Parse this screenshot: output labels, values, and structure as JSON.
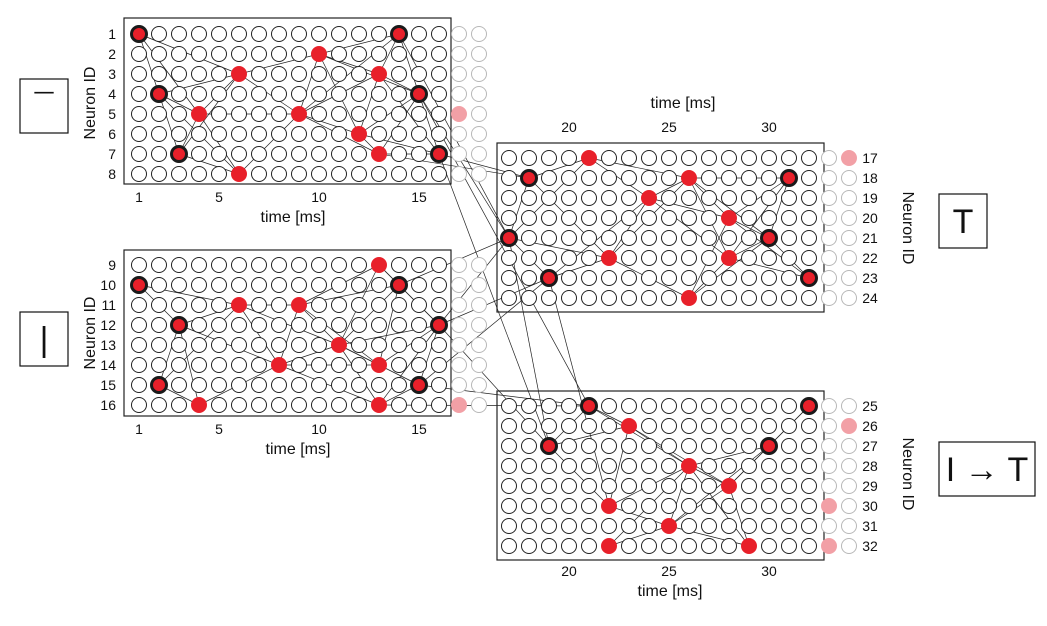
{
  "panels": [
    {
      "id": "top-left",
      "symbol": "¯",
      "axis_title": "time [ms]",
      "side_title": "Neuron ID",
      "neuron_ids": [
        1,
        2,
        3,
        4,
        5,
        6,
        7,
        8
      ],
      "time_ticks": [
        1,
        5,
        10,
        15
      ],
      "spikes": [
        {
          "row": 1,
          "col": 1,
          "bold": true
        },
        {
          "row": 1,
          "col": 14,
          "bold": true
        },
        {
          "row": 2,
          "col": 10,
          "bold": false
        },
        {
          "row": 3,
          "col": 6,
          "bold": false
        },
        {
          "row": 3,
          "col": 13,
          "bold": false
        },
        {
          "row": 4,
          "col": 2,
          "bold": true
        },
        {
          "row": 4,
          "col": 15,
          "bold": true
        },
        {
          "row": 5,
          "col": 4,
          "bold": false
        },
        {
          "row": 5,
          "col": 9,
          "bold": false
        },
        {
          "row": 6,
          "col": 12,
          "bold": false
        },
        {
          "row": 7,
          "col": 3,
          "bold": true
        },
        {
          "row": 7,
          "col": 13,
          "bold": false
        },
        {
          "row": 7,
          "col": 16,
          "bold": true
        },
        {
          "row": 8,
          "col": 6,
          "bold": false
        }
      ],
      "faded_spikes": [
        {
          "row": 5,
          "col": 17
        }
      ]
    },
    {
      "id": "bottom-left",
      "symbol": "|",
      "axis_title": "time [ms]",
      "side_title": "Neuron ID",
      "neuron_ids": [
        9,
        10,
        11,
        12,
        13,
        14,
        15,
        16
      ],
      "time_ticks": [
        1,
        5,
        10,
        15
      ],
      "spikes": [
        {
          "row": 1,
          "col": 13,
          "bold": false
        },
        {
          "row": 2,
          "col": 1,
          "bold": true
        },
        {
          "row": 2,
          "col": 14,
          "bold": true
        },
        {
          "row": 3,
          "col": 6,
          "bold": false
        },
        {
          "row": 3,
          "col": 9,
          "bold": false
        },
        {
          "row": 4,
          "col": 3,
          "bold": true
        },
        {
          "row": 4,
          "col": 16,
          "bold": true
        },
        {
          "row": 5,
          "col": 11,
          "bold": false
        },
        {
          "row": 6,
          "col": 8,
          "bold": false
        },
        {
          "row": 6,
          "col": 13,
          "bold": false
        },
        {
          "row": 7,
          "col": 2,
          "bold": true
        },
        {
          "row": 7,
          "col": 15,
          "bold": true
        },
        {
          "row": 8,
          "col": 4,
          "bold": false
        },
        {
          "row": 8,
          "col": 13,
          "bold": false
        }
      ],
      "faded_spikes": [
        {
          "row": 8,
          "col": 17
        }
      ]
    },
    {
      "id": "top-right",
      "symbol": "T",
      "axis_title": "time [ms]",
      "side_title": "Neuron ID",
      "neuron_ids": [
        17,
        18,
        19,
        20,
        21,
        22,
        23,
        24
      ],
      "time_ticks": [
        20,
        25,
        30
      ],
      "spikes": [
        {
          "row": 1,
          "col": 5,
          "bold": false
        },
        {
          "row": 2,
          "col": 2,
          "bold": true
        },
        {
          "row": 2,
          "col": 10,
          "bold": false
        },
        {
          "row": 2,
          "col": 15,
          "bold": true
        },
        {
          "row": 3,
          "col": 8,
          "bold": false
        },
        {
          "row": 4,
          "col": 12,
          "bold": false
        },
        {
          "row": 5,
          "col": 1,
          "bold": true
        },
        {
          "row": 5,
          "col": 14,
          "bold": true
        },
        {
          "row": 6,
          "col": 6,
          "bold": false
        },
        {
          "row": 6,
          "col": 12,
          "bold": false
        },
        {
          "row": 7,
          "col": 3,
          "bold": true
        },
        {
          "row": 7,
          "col": 16,
          "bold": true
        },
        {
          "row": 8,
          "col": 10,
          "bold": false
        }
      ],
      "faded_spikes": [
        {
          "row": 1,
          "col": 18
        }
      ]
    },
    {
      "id": "bottom-right",
      "symbol": "I → T",
      "axis_title": "time [ms]",
      "side_title": "Neuron ID",
      "neuron_ids": [
        25,
        26,
        27,
        28,
        29,
        30,
        31,
        32
      ],
      "time_ticks": [
        20,
        25,
        30
      ],
      "spikes": [
        {
          "row": 1,
          "col": 5,
          "bold": true
        },
        {
          "row": 1,
          "col": 16,
          "bold": true
        },
        {
          "row": 2,
          "col": 7,
          "bold": false
        },
        {
          "row": 3,
          "col": 3,
          "bold": true
        },
        {
          "row": 3,
          "col": 14,
          "bold": true
        },
        {
          "row": 4,
          "col": 10,
          "bold": false
        },
        {
          "row": 5,
          "col": 12,
          "bold": false
        },
        {
          "row": 6,
          "col": 6,
          "bold": false
        },
        {
          "row": 7,
          "col": 9,
          "bold": false
        },
        {
          "row": 8,
          "col": 6,
          "bold": false
        },
        {
          "row": 8,
          "col": 13,
          "bold": false
        }
      ],
      "faded_spikes": [
        {
          "row": 2,
          "col": 18
        },
        {
          "row": 6,
          "col": 17
        },
        {
          "row": 8,
          "col": 17
        }
      ]
    }
  ],
  "colors": {
    "spike": "#e8202a",
    "spike_faded": "#f2a0a6",
    "circle_stroke": "#222222",
    "circle_faded": "#b8b8b8",
    "line": "#222222"
  }
}
